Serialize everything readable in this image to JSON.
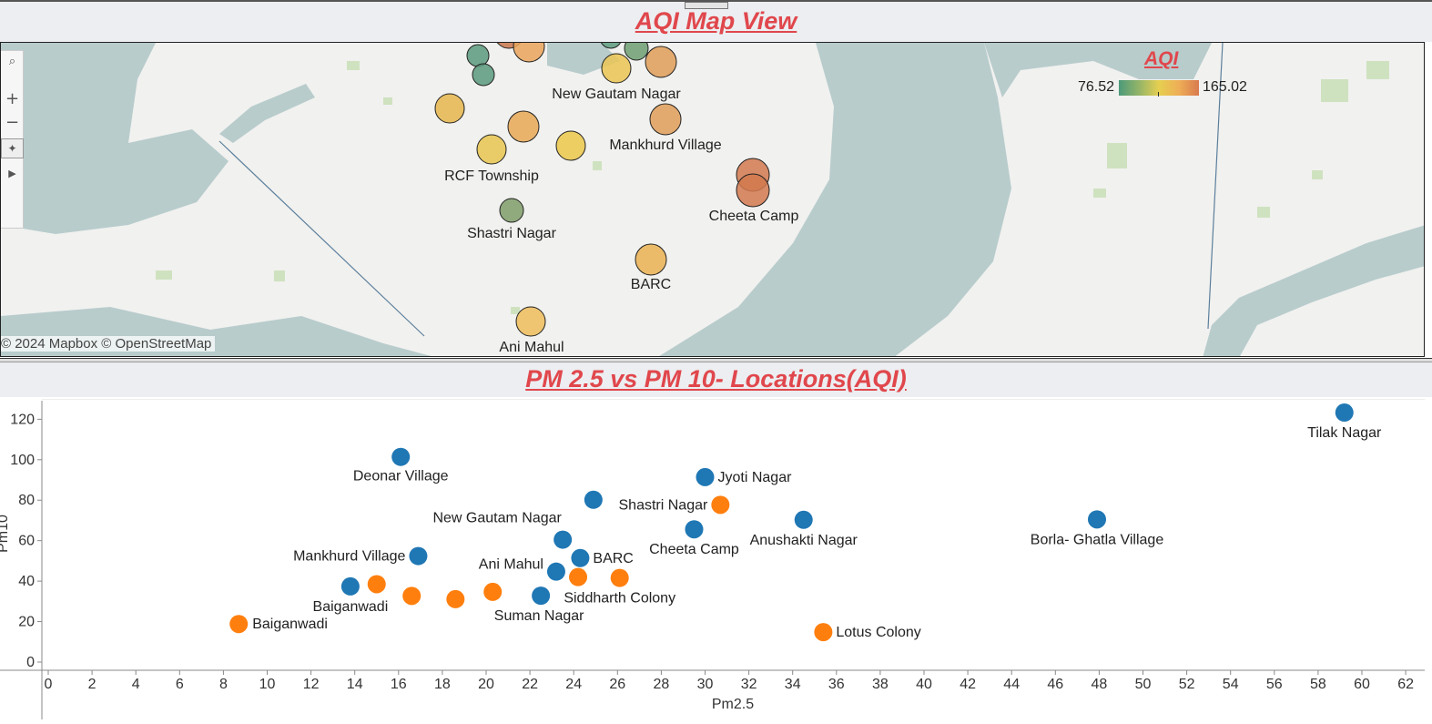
{
  "map_view": {
    "title": "AQI Map View",
    "attribution": "© 2024 Mapbox © OpenStreetMap",
    "legend": {
      "title": "AQI",
      "min": "76.52",
      "max": "165.02",
      "colors": [
        "#4c9a7a",
        "#93b468",
        "#e6cf50",
        "#eeae56",
        "#d97a4e"
      ]
    },
    "toolbar": [
      "search-icon",
      "zoom-in-icon",
      "zoom-out-icon",
      "pan-select-icon",
      "play-icon"
    ],
    "locations": [
      {
        "label": "New Gautam Nagar",
        "color": "#eac452"
      },
      {
        "label": "Mankhurd Village",
        "color": "#e09d58"
      },
      {
        "label": "RCF Township",
        "color": "#e8c54f"
      },
      {
        "label": "Shastri Nagar",
        "color": "#7f9e6a"
      },
      {
        "label": "Cheeta Camp",
        "color": "#d2794f"
      },
      {
        "label": "BARC",
        "color": "#eab252"
      },
      {
        "label": "Ani Mahul",
        "color": "#efbd5a"
      }
    ]
  },
  "chart": {
    "title": "PM 2.5 vs PM 10- Locations(AQI)"
  },
  "chart_data": {
    "type": "scatter",
    "title": "PM 2.5 vs PM 10- Locations(AQI)",
    "xlabel": "Pm2.5",
    "ylabel": "Pm10",
    "xlim": [
      0,
      62
    ],
    "ylim": [
      0,
      125
    ],
    "xticks": [
      "0",
      "2",
      "4",
      "6",
      "8",
      "10",
      "12",
      "14",
      "16",
      "18",
      "20",
      "22",
      "24",
      "26",
      "28",
      "30",
      "32",
      "34",
      "36",
      "38",
      "40",
      "42",
      "44",
      "46",
      "48",
      "50",
      "52",
      "54",
      "56",
      "58",
      "60",
      "62"
    ],
    "yticks": [
      "0",
      "20",
      "40",
      "60",
      "80",
      "100",
      "120"
    ],
    "grid": false,
    "series": [
      {
        "color": "#1f77b4",
        "points": [
          {
            "x": 59.2,
            "y": 123.3,
            "label": "Tilak Nagar"
          },
          {
            "x": 16.1,
            "y": 101.4,
            "label": "Deonar Village"
          },
          {
            "x": 30.0,
            "y": 91.4,
            "label": "Jyoti Nagar"
          },
          {
            "x": 24.9,
            "y": 80.2,
            "label": ""
          },
          {
            "x": 29.5,
            "y": 65.6,
            "label": "Cheeta Camp"
          },
          {
            "x": 34.5,
            "y": 70.3,
            "label": "Anushakti Nagar"
          },
          {
            "x": 47.9,
            "y": 70.5,
            "label": "Borla- Ghatla Village"
          },
          {
            "x": 23.5,
            "y": 60.5,
            "label": "New Gautam Nagar"
          },
          {
            "x": 16.9,
            "y": 52.4,
            "label": "Mankhurd Village"
          },
          {
            "x": 24.3,
            "y": 51.4,
            "label": "BARC"
          },
          {
            "x": 23.2,
            "y": 44.7,
            "label": "Ani Mahul"
          },
          {
            "x": 13.8,
            "y": 37.4,
            "label": "Baiganwadi"
          },
          {
            "x": 22.5,
            "y": 32.8,
            "label": "Suman Nagar"
          }
        ]
      },
      {
        "color": "#ff7f0e",
        "points": [
          {
            "x": 30.7,
            "y": 77.7,
            "label": "Shastri Nagar"
          },
          {
            "x": 15.0,
            "y": 38.5,
            "label": ""
          },
          {
            "x": 16.6,
            "y": 32.7,
            "label": ""
          },
          {
            "x": 18.6,
            "y": 31.1,
            "label": ""
          },
          {
            "x": 20.3,
            "y": 34.7,
            "label": ""
          },
          {
            "x": 24.2,
            "y": 42.0,
            "label": ""
          },
          {
            "x": 26.1,
            "y": 41.6,
            "label": "Siddharth Colony"
          },
          {
            "x": 8.7,
            "y": 18.8,
            "label": "Baiganwadi"
          },
          {
            "x": 35.4,
            "y": 14.8,
            "label": "Lotus Colony"
          }
        ]
      }
    ]
  }
}
